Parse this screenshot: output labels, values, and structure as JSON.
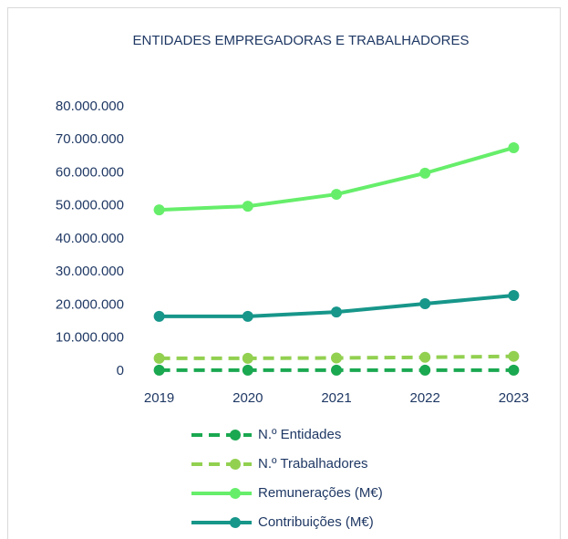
{
  "chart_data": {
    "type": "line",
    "title": "ENTIDADES EMPREGADORAS E TRABALHADORES",
    "categories": [
      "2019",
      "2020",
      "2021",
      "2022",
      "2023"
    ],
    "series": [
      {
        "name": "N.º Entidades",
        "color": "#1aa850",
        "dashed": true,
        "values": [
          300000,
          300000,
          300000,
          300000,
          300000
        ]
      },
      {
        "name": "N.º Trabalhadores",
        "color": "#92d050",
        "dashed": true,
        "values": [
          3900000,
          3900000,
          4000000,
          4200000,
          4500000
        ]
      },
      {
        "name": "Remunerações (M€)",
        "color": "#66ee6a",
        "dashed": false,
        "values": [
          48800000,
          49900000,
          53500000,
          59900000,
          67600000
        ]
      },
      {
        "name": "Contribuições (M€)",
        "color": "#17968a",
        "dashed": false,
        "values": [
          16600000,
          16600000,
          17900000,
          20400000,
          22900000
        ]
      }
    ],
    "ylim": [
      0,
      80000000
    ],
    "yticks": [
      0,
      {
        "value": 10000000,
        "label": "10.000.000"
      },
      {
        "value": 20000000,
        "label": "20.000.000"
      },
      {
        "value": 30000000,
        "label": "30.000.000"
      },
      {
        "value": 40000000,
        "label": "40.000.000"
      },
      {
        "value": 50000000,
        "label": "50.000.000"
      },
      {
        "value": 60000000,
        "label": "60.000.000"
      },
      {
        "value": 70000000,
        "label": "70.000.000"
      },
      {
        "value": 80000000,
        "label": "80.000.000"
      }
    ],
    "grid": false,
    "legend": "bottom"
  }
}
